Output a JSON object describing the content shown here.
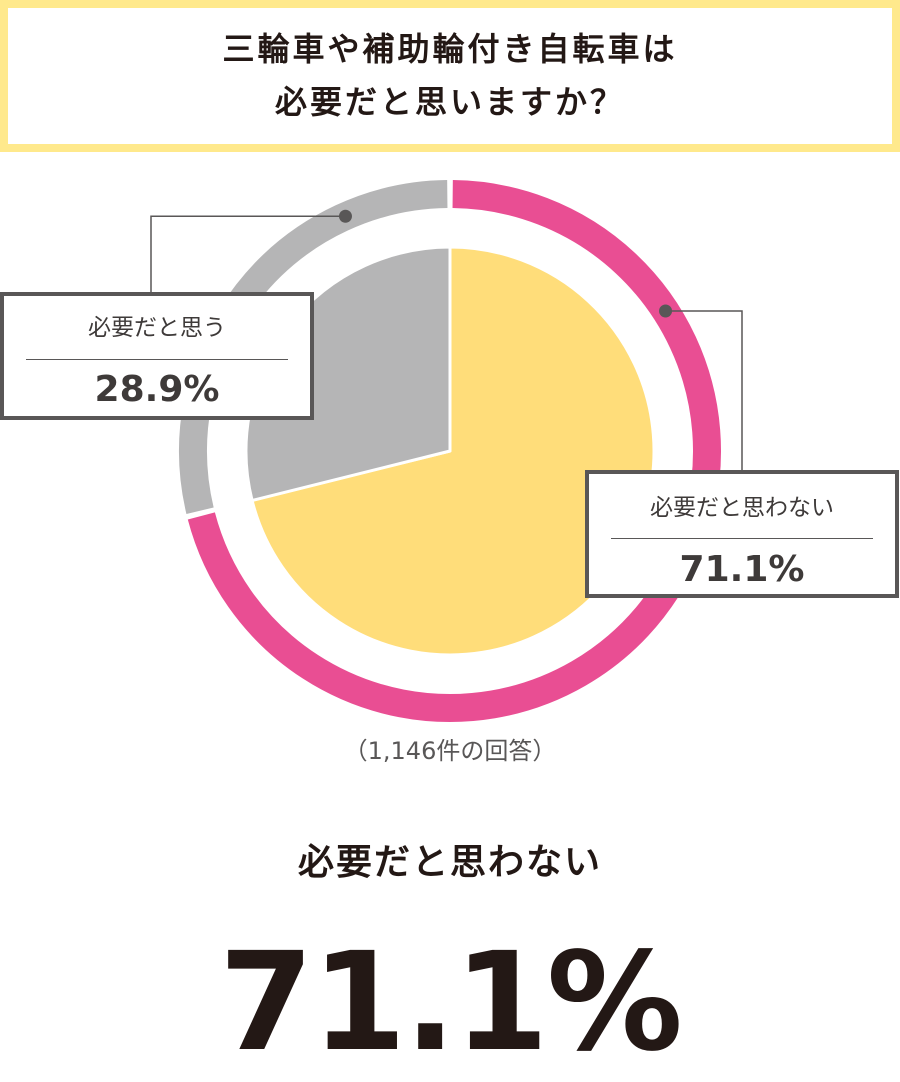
{
  "title": {
    "line1": "三輪車や補助輪付き自転車は",
    "line2": "必要だと思いますか？"
  },
  "chart_data": {
    "type": "pie",
    "categories": [
      "必要だと思う",
      "必要だと思わない"
    ],
    "values": [
      28.9,
      71.1
    ],
    "value_labels": [
      "28.9%",
      "71.1%"
    ],
    "unit": "%"
  },
  "colors": {
    "ring_yes": "#B5B5B6",
    "ring_no": "#E94E93",
    "pie_yes": "#B5B5B6",
    "pie_no": "#FFDD7A",
    "title_border": "#FFE98C",
    "callout_line": "#595757",
    "text_dark": "#231815"
  },
  "callouts": {
    "yes": {
      "label": "必要だと思う",
      "value": "28.9%"
    },
    "no": {
      "label": "必要だと思わない",
      "value": "71.1%"
    }
  },
  "response_count": "（1,146件の回答）",
  "result": {
    "label": "必要だと思わない",
    "value": "71.1%"
  }
}
